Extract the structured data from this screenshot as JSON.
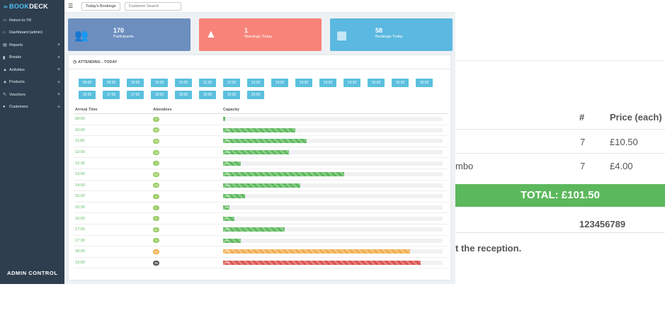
{
  "brand": {
    "part1": "BOOK",
    "part2": "DECK"
  },
  "sidebar": {
    "items": [
      {
        "label": "Return to Till",
        "icon": "monitor-icon",
        "glyph": "▭",
        "expandable": false
      },
      {
        "label": "Dashboard (admin)",
        "icon": "home-icon",
        "glyph": "⌂",
        "expandable": false
      },
      {
        "label": "Reports",
        "icon": "chart-icon",
        "glyph": "▤",
        "expandable": true
      },
      {
        "label": "Breaks",
        "icon": "pause-icon",
        "glyph": "▮",
        "expandable": true
      },
      {
        "label": "Activities",
        "icon": "arrow-up-icon",
        "glyph": "▲",
        "expandable": true
      },
      {
        "label": "Products",
        "icon": "arrow-up-icon",
        "glyph": "▲",
        "expandable": true
      },
      {
        "label": "Vouchers",
        "icon": "ticket-icon",
        "glyph": "✎",
        "expandable": true
      },
      {
        "label": "Customers",
        "icon": "users-icon",
        "glyph": "●",
        "expandable": true
      }
    ],
    "plus": "+",
    "footer": "ADMIN CONTROL"
  },
  "topbar": {
    "todays_bookings": "Today's Bookings",
    "search_placeholder": "Customer Search"
  },
  "stats": [
    {
      "value": "170",
      "label": "Participants",
      "icon": "users-icon",
      "glyph": "👥",
      "color": "#6c8ebf"
    },
    {
      "value": "1",
      "label": "Warnings Today",
      "icon": "warning-icon",
      "glyph": "▲",
      "color": "#f88379"
    },
    {
      "value": "58",
      "label": "Bookings Today",
      "icon": "calendar-icon",
      "glyph": "▦",
      "color": "#5bb8e0"
    }
  ],
  "panel": {
    "title": "ATTENDING - TODAY"
  },
  "times": [
    "09:00",
    "09:30",
    "10:00",
    "10:30",
    "11:00",
    "11:30",
    "12:00",
    "12:30",
    "13:00",
    "13:30",
    "14:00",
    "14:30",
    "15:00",
    "15:30",
    "16:00",
    "16:30",
    "17:00",
    "17:30",
    "18:00",
    "18:30",
    "19:00",
    "19:30",
    "20:00"
  ],
  "table": {
    "headers": {
      "time": "Arrival Time",
      "attendees": "Attendees",
      "capacity": "Capacity"
    },
    "rows": [
      {
        "time": "09:00",
        "attendees": "0",
        "pct": 0,
        "label": "",
        "color": "#5cb85c",
        "badge": "#9acd66"
      },
      {
        "time": "10:00",
        "attendees": "10",
        "pct": 33,
        "label": "33%",
        "color": "#5cb85c",
        "badge": "#9acd66"
      },
      {
        "time": "11:00",
        "attendees": "15",
        "pct": 38,
        "label": "38%",
        "color": "#5cb85c",
        "badge": "#9acd66"
      },
      {
        "time": "12:00",
        "attendees": "12",
        "pct": 30,
        "label": "30%",
        "color": "#5cb85c",
        "badge": "#9acd66"
      },
      {
        "time": "12:30",
        "attendees": "3",
        "pct": 8,
        "label": "8%",
        "color": "#5cb85c",
        "badge": "#9acd66"
      },
      {
        "time": "13:00",
        "attendees": "22",
        "pct": 55,
        "label": "55%",
        "color": "#5cb85c",
        "badge": "#9acd66"
      },
      {
        "time": "14:00",
        "attendees": "14",
        "pct": 35,
        "label": "35%",
        "color": "#5cb85c",
        "badge": "#9acd66"
      },
      {
        "time": "15:00",
        "attendees": "4",
        "pct": 10,
        "label": "10%",
        "color": "#5cb85c",
        "badge": "#9acd66"
      },
      {
        "time": "15:30",
        "attendees": "1",
        "pct": 3,
        "label": "3%",
        "color": "#5cb85c",
        "badge": "#9acd66"
      },
      {
        "time": "16:00",
        "attendees": "2",
        "pct": 5,
        "label": "5%",
        "color": "#5cb85c",
        "badge": "#9acd66"
      },
      {
        "time": "17:00",
        "attendees": "11",
        "pct": 28,
        "label": "28%",
        "color": "#5cb85c",
        "badge": "#9acd66"
      },
      {
        "time": "17:30",
        "attendees": "3",
        "pct": 8,
        "label": "8%",
        "color": "#5cb85c",
        "badge": "#9acd66"
      },
      {
        "time": "18:00",
        "attendees": "34",
        "pct": 85,
        "label": "85%",
        "color": "#f0ad4e",
        "badge": "#f0ad4e"
      },
      {
        "time": "19:00",
        "attendees": "36",
        "pct": 90,
        "label": "90%",
        "color": "#d9534f",
        "badge": "#555555"
      }
    ]
  },
  "receipt": {
    "col_hash": "#",
    "col_price": "Price (each)",
    "item1_qty": "7",
    "item1_price": "£10.50",
    "item2_name": "mbo",
    "item2_qty": "7",
    "item2_price": "£4.00",
    "total": "TOTAL: £101.50",
    "reference": "123456789",
    "note": "t the reception."
  }
}
